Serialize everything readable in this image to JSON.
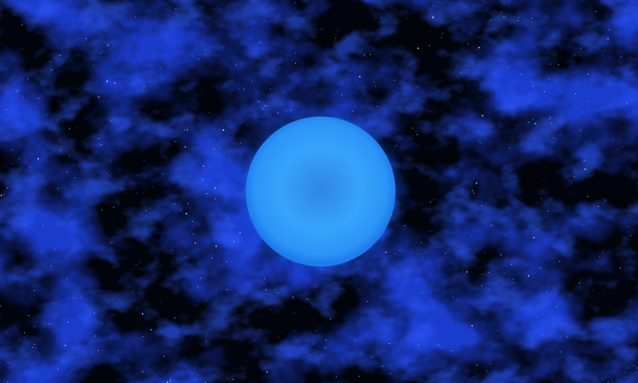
{
  "scene": {
    "subject": "blue-star",
    "background": "nebula-starfield",
    "colors": {
      "space": "#02040c",
      "nebula_deep": "#0a1f8a",
      "nebula_bright": "#2f5bff",
      "star_core": "#37a6ff",
      "star_rim": "#1a7cf0",
      "star_glow": "#1f6fff",
      "starlight": "#ffffff"
    }
  }
}
